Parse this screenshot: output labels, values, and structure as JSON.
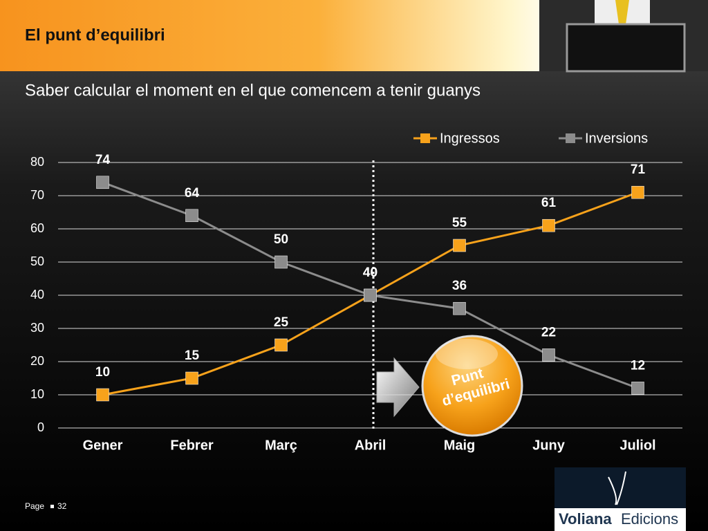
{
  "title": "El punt d’equilibri",
  "subtitle": "Saber calcular el moment en el que comencem a tenir guanys",
  "footer": {
    "page_label": "Page",
    "page_number": 32
  },
  "logo": {
    "name": "Voliana",
    "suffix": "Edicions"
  },
  "chart_data": {
    "type": "line",
    "categories": [
      "Gener",
      "Febrer",
      "Març",
      "Abril",
      "Maig",
      "Juny",
      "Juliol"
    ],
    "series": [
      {
        "name": "Ingressos",
        "color": "#f7a21b",
        "values": [
          10,
          15,
          25,
          40,
          55,
          61,
          71
        ]
      },
      {
        "name": "Inversions",
        "color": "#8c8c8c",
        "values": [
          74,
          64,
          50,
          40,
          36,
          22,
          12
        ]
      }
    ],
    "ylim": [
      0,
      80
    ],
    "yticks": [
      0,
      10,
      20,
      30,
      40,
      50,
      60,
      70,
      80
    ],
    "grid": true,
    "legend": "top-right",
    "annotation": [
      "Punt",
      "d’equilibri"
    ]
  }
}
